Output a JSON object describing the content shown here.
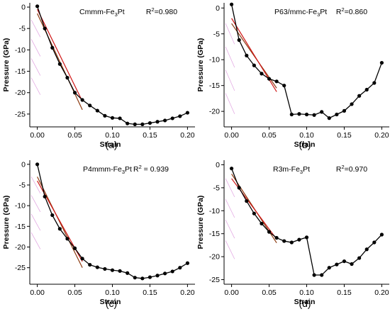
{
  "chart_data": [
    {
      "type": "line",
      "panel_label": "(a)",
      "title_base": "Cmmm-Fe",
      "title_sub": "3",
      "title_end": "Pt",
      "r2_label": "R",
      "r2_sup": "2",
      "r2_value": "=0.980",
      "xlabel": "Strain",
      "ylabel": "Pressure (GPa)",
      "xlim": [
        -0.01,
        0.21
      ],
      "ylim": [
        -28,
        1
      ],
      "xticks": [
        0.0,
        0.05,
        0.1,
        0.15,
        0.2
      ],
      "xtick_labels": [
        "0.00",
        "0.05",
        "0.10",
        "0.15",
        "0.20"
      ],
      "yticks": [
        0,
        -5,
        -10,
        -15,
        -20,
        -25
      ],
      "ytick_labels": [
        "0",
        "-5",
        "-10",
        "-15",
        "-20",
        "-25"
      ],
      "series": [
        {
          "x": [
            0.0,
            0.01,
            0.02,
            0.03,
            0.04,
            0.05,
            0.06,
            0.07,
            0.08,
            0.09,
            0.1,
            0.11,
            0.12,
            0.13,
            0.14,
            0.15,
            0.16,
            0.17,
            0.18,
            0.19,
            0.2
          ],
          "y": [
            0.2,
            -5.0,
            -9.5,
            -13.3,
            -16.5,
            -20.0,
            -21.7,
            -23.0,
            -24.2,
            -25.4,
            -25.9,
            -26.0,
            -27.2,
            -27.4,
            -27.4,
            -27.1,
            -26.8,
            -26.5,
            -26.0,
            -25.5,
            -24.7
          ],
          "color": "#000000"
        }
      ],
      "fit_lines": [
        {
          "x": [
            0.0,
            0.06
          ],
          "y": [
            -1.5,
            -24.0
          ],
          "color": "#8b3a10"
        },
        {
          "x": [
            0.0,
            0.06
          ],
          "y": [
            -0.5,
            -22.0
          ],
          "color": "#d01818"
        }
      ],
      "hatch_color": "#e0a0e0"
    },
    {
      "type": "line",
      "panel_label": "(b)",
      "title_base": "P63/mmc-Fe",
      "title_sub": "3",
      "title_end": "Pt",
      "r2_label": "R",
      "r2_sup": "2",
      "r2_value": "=0.860",
      "xlabel": "Strain",
      "ylabel": "Pressure (GPa)",
      "xlim": [
        -0.01,
        0.21
      ],
      "ylim": [
        -23,
        1
      ],
      "xticks": [
        0.0,
        0.05,
        0.1,
        0.15,
        0.2
      ],
      "xtick_labels": [
        "0.00",
        "0.05",
        "0.10",
        "0.15",
        "0.20"
      ],
      "yticks": [
        0,
        -5,
        -10,
        -15,
        -20
      ],
      "ytick_labels": [
        "0",
        "-5",
        "-10",
        "-15",
        "-20"
      ],
      "series": [
        {
          "x": [
            0.0,
            0.01,
            0.02,
            0.03,
            0.04,
            0.05,
            0.06,
            0.07,
            0.08,
            0.09,
            0.1,
            0.11,
            0.12,
            0.13,
            0.14,
            0.15,
            0.16,
            0.17,
            0.18,
            0.19,
            0.2
          ],
          "y": [
            0.7,
            -6.2,
            -9.2,
            -11.1,
            -12.7,
            -13.7,
            -14.2,
            -15.0,
            -20.6,
            -20.5,
            -20.6,
            -20.7,
            -20.1,
            -21.3,
            -20.6,
            -19.9,
            -18.6,
            -17.0,
            -15.8,
            -14.5,
            -10.6
          ],
          "color": "#000000"
        }
      ],
      "fit_lines": [
        {
          "x": [
            0.0,
            0.06
          ],
          "y": [
            -3.0,
            -15.5
          ],
          "color": "#8b3a10"
        },
        {
          "x": [
            0.0,
            0.06
          ],
          "y": [
            -2.0,
            -16.2
          ],
          "color": "#d01818"
        }
      ],
      "hatch_color": "#e0a0e0"
    },
    {
      "type": "line",
      "panel_label": "(c)",
      "title_base": "P4mmm-Fe",
      "title_sub": "3",
      "title_end": "Pt",
      "r2_label": "R",
      "r2_sup": "2",
      "r2_value": " = 0.939",
      "xlabel": "Strain",
      "ylabel": "Pressure (GPa)",
      "xlim": [
        -0.01,
        0.21
      ],
      "ylim": [
        -29,
        1
      ],
      "xticks": [
        0.0,
        0.05,
        0.1,
        0.15,
        0.2
      ],
      "xtick_labels": [
        "0.00",
        "0.05",
        "0.10",
        "0.15",
        "0.20"
      ],
      "yticks": [
        0,
        -5,
        -10,
        -15,
        -20,
        -25
      ],
      "ytick_labels": [
        "0",
        "-5",
        "-10",
        "-15",
        "-20",
        "-25"
      ],
      "series": [
        {
          "x": [
            0.0,
            0.01,
            0.02,
            0.03,
            0.04,
            0.05,
            0.06,
            0.07,
            0.08,
            0.09,
            0.1,
            0.11,
            0.12,
            0.13,
            0.14,
            0.15,
            0.16,
            0.17,
            0.18,
            0.19,
            0.2
          ],
          "y": [
            0.0,
            -7.8,
            -12.3,
            -15.6,
            -18.0,
            -20.3,
            -22.8,
            -24.3,
            -24.9,
            -25.3,
            -25.6,
            -25.8,
            -26.3,
            -27.4,
            -27.6,
            -27.3,
            -26.9,
            -26.4,
            -25.9,
            -25.0,
            -23.9
          ],
          "color": "#000000"
        }
      ],
      "fit_lines": [
        {
          "x": [
            0.0,
            0.06
          ],
          "y": [
            -3.0,
            -25.0
          ],
          "color": "#8b3a10"
        },
        {
          "x": [
            0.0,
            0.06
          ],
          "y": [
            -4.0,
            -23.5
          ],
          "color": "#d01818"
        }
      ],
      "hatch_color": "#e0a0e0"
    },
    {
      "type": "line",
      "panel_label": "(d)",
      "title_base": "R3m-Fe",
      "title_sub": "3",
      "title_end": "Pt",
      "r2_label": "R",
      "r2_sup": "2",
      "r2_value": "=0.970",
      "xlabel": "Strain",
      "ylabel": "Pressure (GPa)",
      "xlim": [
        -0.01,
        0.21
      ],
      "ylim": [
        -26,
        1
      ],
      "xticks": [
        0.0,
        0.05,
        0.1,
        0.15,
        0.2
      ],
      "xtick_labels": [
        "0.00",
        "0.05",
        "0.10",
        "0.15",
        "0.20"
      ],
      "yticks": [
        0,
        -5,
        -10,
        -15,
        -20,
        -25
      ],
      "ytick_labels": [
        "0",
        "-5",
        "-10",
        "-15",
        "-20",
        "-25"
      ],
      "series": [
        {
          "x": [
            0.0,
            0.01,
            0.02,
            0.03,
            0.04,
            0.05,
            0.06,
            0.07,
            0.08,
            0.09,
            0.1,
            0.11,
            0.12,
            0.13,
            0.14,
            0.15,
            0.16,
            0.17,
            0.18,
            0.19,
            0.2
          ],
          "y": [
            -0.8,
            -5.0,
            -7.9,
            -10.6,
            -12.8,
            -14.6,
            -15.9,
            -16.6,
            -16.9,
            -16.3,
            -15.8,
            -24.0,
            -24.0,
            -22.4,
            -21.7,
            -21.0,
            -21.6,
            -20.3,
            -18.4,
            -16.9,
            -15.2
          ],
          "color": "#000000"
        }
      ],
      "fit_lines": [
        {
          "x": [
            0.0,
            0.06
          ],
          "y": [
            -2.0,
            -17.0
          ],
          "color": "#8b3a10"
        },
        {
          "x": [
            0.0,
            0.06
          ],
          "y": [
            -3.0,
            -16.2
          ],
          "color": "#d01818"
        }
      ],
      "hatch_color": "#e0a0e0"
    }
  ]
}
